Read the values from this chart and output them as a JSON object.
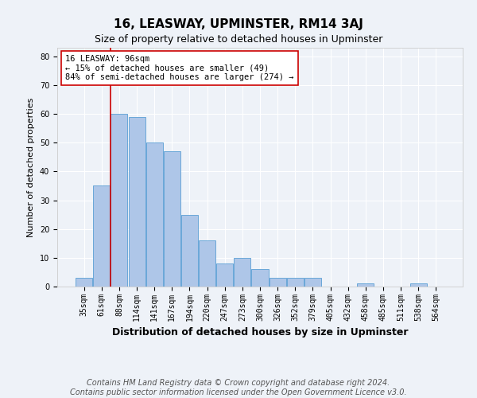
{
  "title": "16, LEASWAY, UPMINSTER, RM14 3AJ",
  "subtitle": "Size of property relative to detached houses in Upminster",
  "xlabel": "Distribution of detached houses by size in Upminster",
  "ylabel": "Number of detached properties",
  "categories": [
    "35sqm",
    "61sqm",
    "88sqm",
    "114sqm",
    "141sqm",
    "167sqm",
    "194sqm",
    "220sqm",
    "247sqm",
    "273sqm",
    "300sqm",
    "326sqm",
    "352sqm",
    "379sqm",
    "405sqm",
    "432sqm",
    "458sqm",
    "485sqm",
    "511sqm",
    "538sqm",
    "564sqm"
  ],
  "values": [
    3,
    35,
    60,
    59,
    50,
    47,
    25,
    16,
    8,
    10,
    6,
    3,
    3,
    3,
    0,
    0,
    1,
    0,
    0,
    1,
    0
  ],
  "bar_color": "#aec6e8",
  "bar_edge_color": "#5a9fd4",
  "vline_index": 2,
  "highlight_label": "16 LEASWAY: 96sqm",
  "annotation_line1": "← 15% of detached houses are smaller (49)",
  "annotation_line2": "84% of semi-detached houses are larger (274) →",
  "annotation_box_color": "#ffffff",
  "annotation_box_edge": "#cc0000",
  "vline_color": "#cc0000",
  "ylim": [
    0,
    83
  ],
  "yticks": [
    0,
    10,
    20,
    30,
    40,
    50,
    60,
    70,
    80
  ],
  "footer_line1": "Contains HM Land Registry data © Crown copyright and database right 2024.",
  "footer_line2": "Contains public sector information licensed under the Open Government Licence v3.0.",
  "bg_color": "#eef2f8",
  "grid_color": "#ffffff",
  "title_fontsize": 11,
  "subtitle_fontsize": 9,
  "xlabel_fontsize": 9,
  "ylabel_fontsize": 8,
  "tick_fontsize": 7,
  "footer_fontsize": 7,
  "annot_fontsize": 7.5
}
